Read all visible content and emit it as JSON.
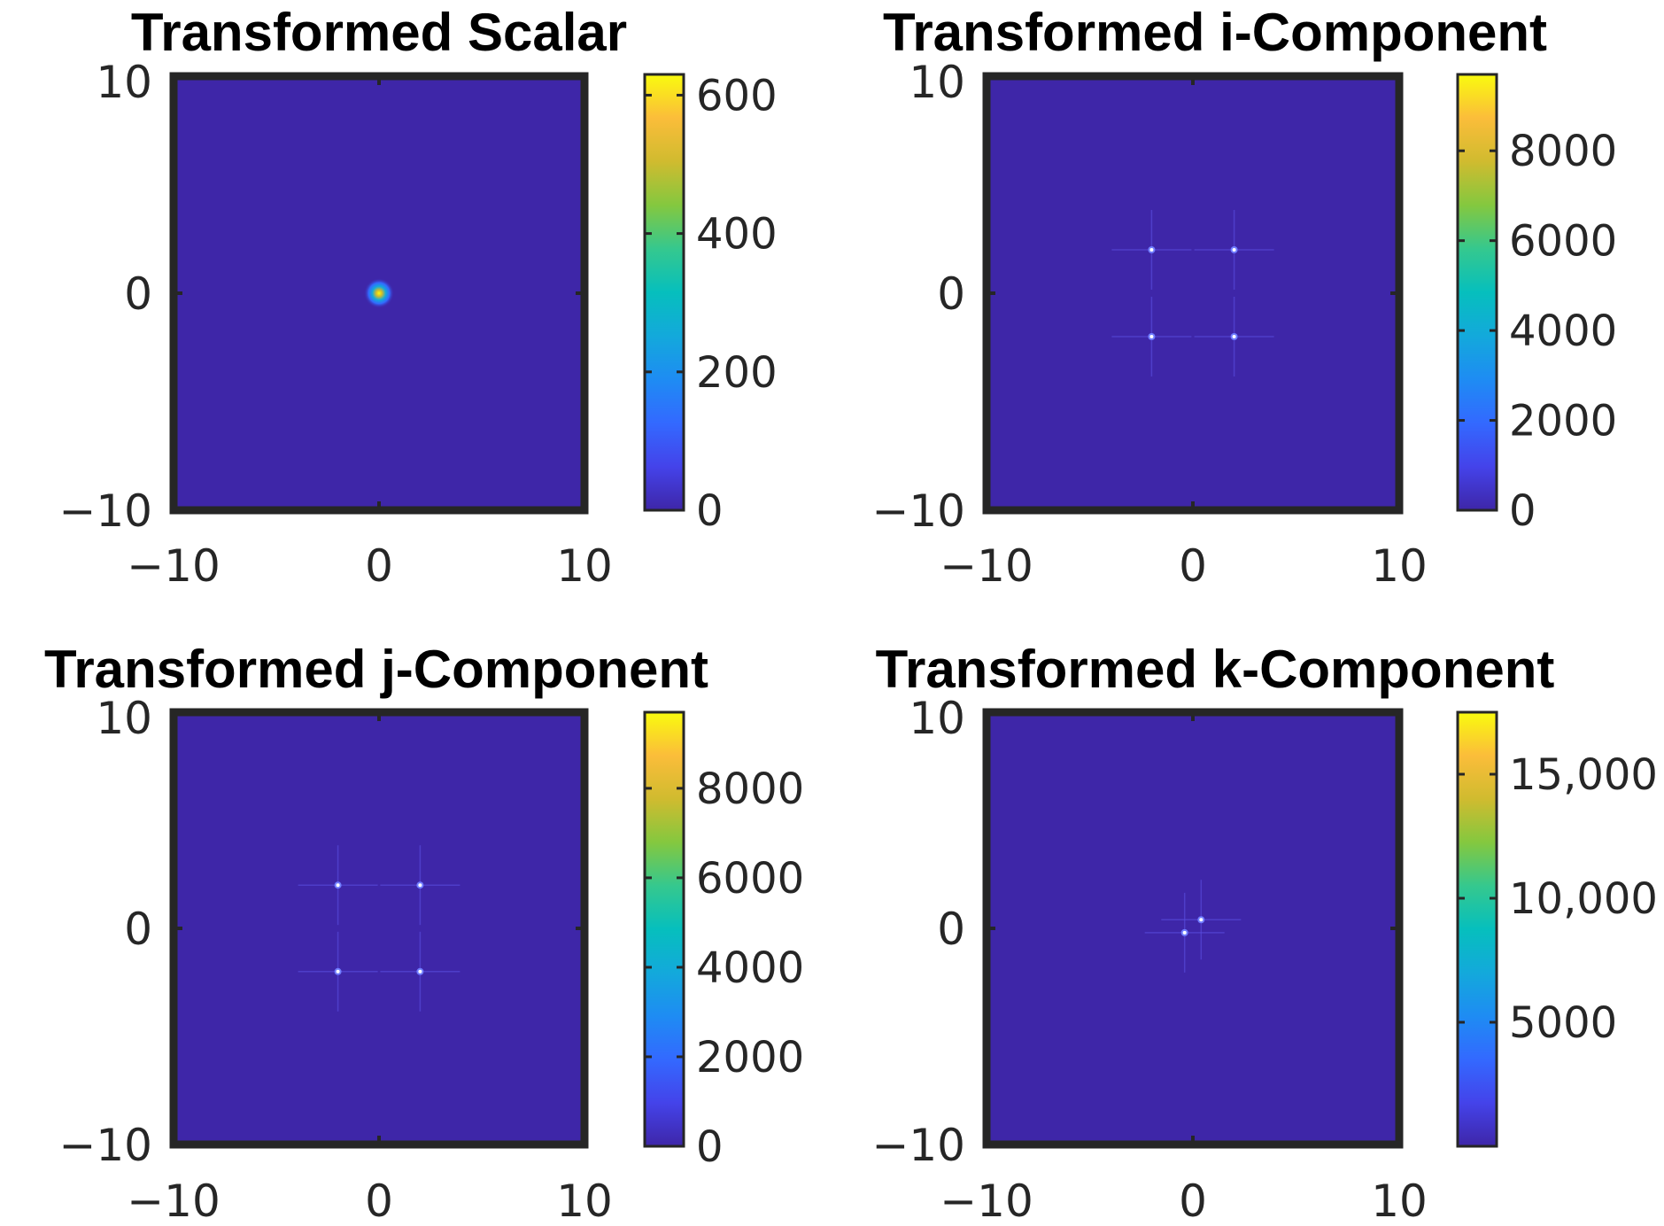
{
  "chart_data": [
    {
      "type": "heatmap",
      "title": "Transformed Scalar",
      "xlabel": "",
      "ylabel": "",
      "xlim": [
        -10,
        10
      ],
      "ylim": [
        -10,
        10
      ],
      "xticks": [
        -10,
        0,
        10
      ],
      "xtick_labels": [
        "−10",
        "0",
        "10"
      ],
      "yticks": [
        -10,
        0,
        10
      ],
      "ytick_labels": [
        "−10",
        "0",
        "10"
      ],
      "colorbar": {
        "range": [
          0,
          630
        ],
        "ticks": [
          0,
          200,
          400,
          600
        ],
        "tick_labels": [
          "0",
          "200",
          "400",
          "600"
        ]
      },
      "background_value": 0,
      "peaks": [
        {
          "x": 0,
          "y": 0,
          "value": 630,
          "spread": "blob"
        }
      ]
    },
    {
      "type": "heatmap",
      "title": "Transformed i-Component",
      "xlabel": "",
      "ylabel": "",
      "xlim": [
        -10,
        10
      ],
      "ylim": [
        -10,
        10
      ],
      "xticks": [
        -10,
        0,
        10
      ],
      "xtick_labels": [
        "−10",
        "0",
        "10"
      ],
      "yticks": [
        -10,
        0,
        10
      ],
      "ytick_labels": [
        "−10",
        "0",
        "10"
      ],
      "colorbar": {
        "range": [
          0,
          9700
        ],
        "ticks": [
          0,
          2000,
          4000,
          6000,
          8000
        ],
        "tick_labels": [
          "0",
          "2000",
          "4000",
          "6000",
          "8000"
        ]
      },
      "background_value": 0,
      "peaks": [
        {
          "x": -2,
          "y": 2,
          "value": 9700,
          "spread": "point"
        },
        {
          "x": 2,
          "y": 2,
          "value": 9700,
          "spread": "point"
        },
        {
          "x": -2,
          "y": -2,
          "value": 9700,
          "spread": "point"
        },
        {
          "x": 2,
          "y": -2,
          "value": 9700,
          "spread": "point"
        }
      ]
    },
    {
      "type": "heatmap",
      "title": "Transformed j-Component",
      "xlabel": "",
      "ylabel": "",
      "xlim": [
        -10,
        10
      ],
      "ylim": [
        -10,
        10
      ],
      "xticks": [
        -10,
        0,
        10
      ],
      "xtick_labels": [
        "−10",
        "0",
        "10"
      ],
      "yticks": [
        -10,
        0,
        10
      ],
      "ytick_labels": [
        "−10",
        "0",
        "10"
      ],
      "colorbar": {
        "range": [
          0,
          9700
        ],
        "ticks": [
          0,
          2000,
          4000,
          6000,
          8000
        ],
        "tick_labels": [
          "0",
          "2000",
          "4000",
          "6000",
          "8000"
        ]
      },
      "background_value": 0,
      "peaks": [
        {
          "x": -2,
          "y": 2,
          "value": 9700,
          "spread": "point"
        },
        {
          "x": 2,
          "y": 2,
          "value": 9700,
          "spread": "point"
        },
        {
          "x": -2,
          "y": -2,
          "value": 9700,
          "spread": "point"
        },
        {
          "x": 2,
          "y": -2,
          "value": 9700,
          "spread": "point"
        }
      ]
    },
    {
      "type": "heatmap",
      "title": "Transformed k-Component",
      "xlabel": "",
      "ylabel": "",
      "xlim": [
        -10,
        10
      ],
      "ylim": [
        -10,
        10
      ],
      "xticks": [
        -10,
        0,
        10
      ],
      "xtick_labels": [
        "−10",
        "0",
        "10"
      ],
      "yticks": [
        -10,
        0,
        10
      ],
      "ytick_labels": [
        "−10",
        "0",
        "10"
      ],
      "colorbar": {
        "range": [
          0,
          17500
        ],
        "ticks": [
          5000,
          10000,
          15000
        ],
        "tick_labels": [
          "5000",
          "10,000",
          "15,000"
        ]
      },
      "background_value": 0,
      "peaks": [
        {
          "x": 0.4,
          "y": 0.4,
          "value": 17500,
          "spread": "point"
        },
        {
          "x": -0.4,
          "y": -0.2,
          "value": 17500,
          "spread": "point"
        }
      ]
    }
  ],
  "colormap": "parula",
  "colors": {
    "background": "#3e26a8",
    "axes_frame": "#262626",
    "tick_text": "#262626"
  }
}
